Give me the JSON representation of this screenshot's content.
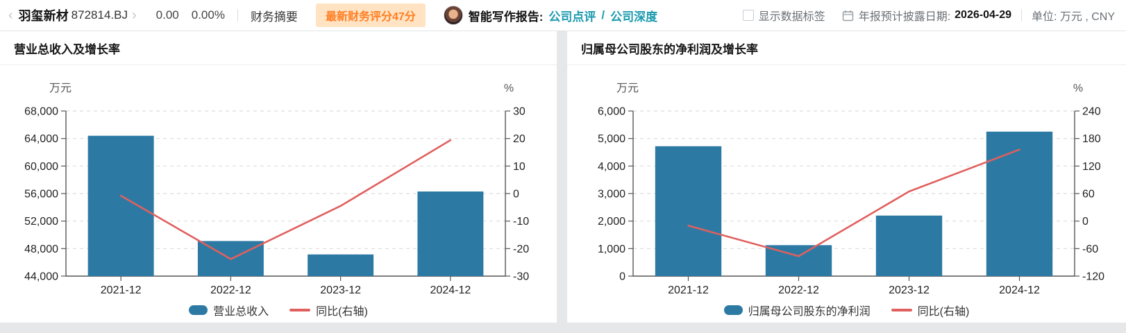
{
  "header": {
    "back_icon": "‹",
    "forward_icon": "›",
    "stock_name": "羽玺新材",
    "stock_code": "872814.BJ",
    "price": "0.00",
    "change_pct": "0.00%",
    "menu_financial_summary": "财务摘要",
    "score_badge": "最新财务评分47分",
    "ai_report_label": "智能写作报告:",
    "link_company_review": "公司点评",
    "link_separator": "/",
    "link_company_deep": "公司深度",
    "show_data_labels_label": "显示数据标签",
    "show_data_labels_checked": false,
    "disclosure_label": "年报预计披露日期:",
    "disclosure_date": "2026-04-29",
    "unit_label": "单位: 万元 , CNY"
  },
  "colors": {
    "bar": "#2c7aa4",
    "line": "#e0605e",
    "axis": "#555555",
    "grid": "#dcdcdc",
    "tick_text": "#222222",
    "unit_text": "#555555",
    "badge_bg": "#ffe3c3",
    "badge_text": "#ff7e22",
    "link_teal": "#1a9aae"
  },
  "chart_data": [
    {
      "type": "bar+line",
      "title": "营业总收入及增长率",
      "unit_left": "万元",
      "unit_right": "%",
      "categories": [
        "2021-12",
        "2022-12",
        "2023-12",
        "2024-12"
      ],
      "series": [
        {
          "name": "营业总收入",
          "type": "bar",
          "axis": "left",
          "values": [
            64400,
            49100,
            47150,
            56300
          ]
        },
        {
          "name": "同比(右轴)",
          "type": "line",
          "axis": "right",
          "values": [
            -0.8,
            -23.8,
            -4.5,
            19.4
          ]
        }
      ],
      "y_left": {
        "min": 44000,
        "max": 68000,
        "step": 4000,
        "format": "thousands"
      },
      "y_right": {
        "min": -30,
        "max": 30,
        "step": 10,
        "format": "plain"
      },
      "grid": true,
      "legend_position": "bottom"
    },
    {
      "type": "bar+line",
      "title": "归属母公司股东的净利润及增长率",
      "unit_left": "万元",
      "unit_right": "%",
      "categories": [
        "2021-12",
        "2022-12",
        "2023-12",
        "2024-12"
      ],
      "series": [
        {
          "name": "归属母公司股东的净利润",
          "type": "bar",
          "axis": "left",
          "values": [
            4720,
            1125,
            2200,
            5250
          ]
        },
        {
          "name": "同比(右轴)",
          "type": "line",
          "axis": "right",
          "values": [
            -10,
            -76.5,
            64.5,
            156
          ]
        }
      ],
      "y_left": {
        "min": 0,
        "max": 6000,
        "step": 1000,
        "format": "thousands"
      },
      "y_right": {
        "min": -120,
        "max": 240,
        "step": 60,
        "format": "plain"
      },
      "grid": true,
      "legend_position": "bottom"
    }
  ]
}
